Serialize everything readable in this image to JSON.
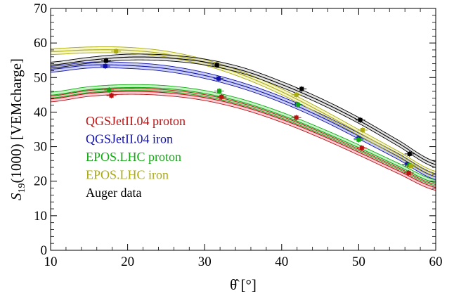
{
  "chart_data": {
    "type": "line",
    "xlabel": "θ̂ [°]",
    "ylabel_main": "S",
    "ylabel_sub": "19",
    "ylabel_rest": "(1000) [VEMcharge]",
    "xlim": [
      10,
      60
    ],
    "ylim": [
      0,
      70
    ],
    "xticks": [
      10,
      20,
      30,
      40,
      50,
      60
    ],
    "yticks": [
      0,
      10,
      20,
      30,
      40,
      50,
      60,
      70
    ],
    "grid": false,
    "legend_placement": "center-left",
    "series": [
      {
        "name": "QGSJetII.04 proton",
        "color": "#bb1111",
        "band_color": "#f2a3b3",
        "curve_x": [
          10,
          15,
          20,
          25,
          30,
          35,
          40,
          45,
          50,
          55,
          60
        ],
        "curve_y": [
          43.8,
          45.4,
          46.0,
          45.6,
          44.2,
          41.6,
          37.9,
          33.4,
          28.4,
          23.2,
          18.2
        ],
        "points_x": [
          17.9,
          32.2,
          41.9,
          50.4,
          56.5
        ],
        "points_y": [
          44.8,
          44.4,
          38.4,
          29.6,
          22.4
        ]
      },
      {
        "name": "QGSJetII.04 iron",
        "color": "#1111aa",
        "band_color": "#9ea8e6",
        "curve_x": [
          10,
          15,
          20,
          25,
          30,
          35,
          40,
          45,
          50,
          55,
          60
        ],
        "curve_y": [
          52.4,
          53.6,
          53.5,
          52.6,
          50.6,
          47.6,
          43.6,
          38.7,
          33.1,
          27.3,
          21.3
        ],
        "points_x": [
          17.1,
          31.8,
          42.0,
          50.0,
          56.3
        ],
        "points_y": [
          53.3,
          49.7,
          42.2,
          32.4,
          24.9
        ]
      },
      {
        "name": "EPOS.LHC proton",
        "color": "#11aa11",
        "band_color": "#9be69b",
        "curve_x": [
          10,
          15,
          20,
          25,
          30,
          35,
          40,
          45,
          50,
          55,
          60
        ],
        "curve_y": [
          44.9,
          46.5,
          47.1,
          46.8,
          45.4,
          42.8,
          39.1,
          34.6,
          29.7,
          24.5,
          19.5
        ],
        "points_x": [
          17.6,
          31.9,
          42.1,
          50.0,
          56.6
        ],
        "points_y": [
          46.4,
          46.1,
          42.1,
          32.0,
          24.6
        ]
      },
      {
        "name": "EPOS.LHC iron",
        "color": "#aaaa11",
        "band_color": "#ecec9b",
        "curve_x": [
          10,
          15,
          20,
          25,
          30,
          35,
          40,
          45,
          50,
          55,
          60
        ],
        "curve_y": [
          57.5,
          58.0,
          57.9,
          56.8,
          54.4,
          50.7,
          45.9,
          40.2,
          34.1,
          28.0,
          22.0
        ],
        "points_x": [
          18.5,
          31.5,
          41.9,
          50.5,
          56.8
        ],
        "points_y": [
          57.6,
          53.8,
          45.0,
          34.8,
          24.4
        ]
      },
      {
        "name": "Auger data",
        "color": "#000000",
        "band_color": "#c8c8c8",
        "curve_x": [
          10,
          15,
          20,
          25,
          30,
          35,
          40,
          45,
          50,
          55,
          60
        ],
        "curve_y": [
          53.6,
          55.0,
          55.9,
          55.7,
          54.5,
          52.0,
          48.0,
          43.2,
          37.6,
          31.2,
          24.8
        ],
        "points_x": [
          17.2,
          31.6,
          42.6,
          50.2,
          56.6
        ],
        "points_y": [
          54.9,
          53.6,
          46.7,
          37.7,
          27.9
        ]
      }
    ]
  }
}
